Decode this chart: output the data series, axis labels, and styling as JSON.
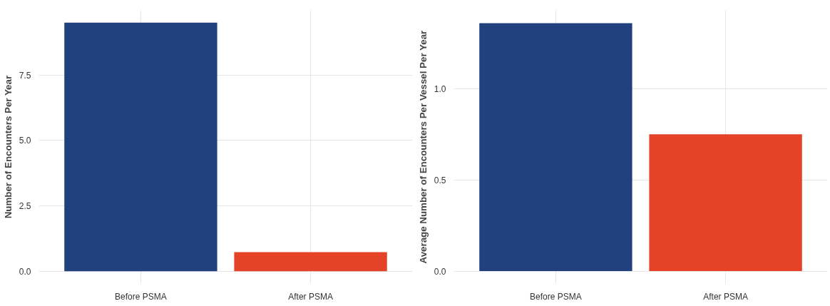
{
  "chart_data": [
    {
      "type": "bar",
      "ylabel": "Number of Encounters Per Year",
      "categories": [
        "Before PSMA",
        "After PSMA"
      ],
      "values": [
        9.5,
        0.73
      ],
      "colors": [
        "#20407e",
        "#e54327"
      ],
      "ylim": [
        -0.47,
        9.97
      ],
      "yticks": [
        {
          "value": 0,
          "label": "0.0"
        },
        {
          "value": 2.5,
          "label": "2.5"
        },
        {
          "value": 5,
          "label": "5.0"
        },
        {
          "value": 7.5,
          "label": "7.5"
        }
      ],
      "grid": true
    },
    {
      "type": "bar",
      "ylabel": "Average Number of Encounters Per Vessel Per Year",
      "categories": [
        "Before PSMA",
        "After PSMA"
      ],
      "values": [
        1.36,
        0.75
      ],
      "colors": [
        "#20407e",
        "#e54327"
      ],
      "ylim": [
        -0.068,
        1.43
      ],
      "yticks": [
        {
          "value": 0,
          "label": "0.0"
        },
        {
          "value": 0.5,
          "label": "0.5"
        },
        {
          "value": 1,
          "label": "1.0"
        }
      ],
      "grid": true
    }
  ]
}
